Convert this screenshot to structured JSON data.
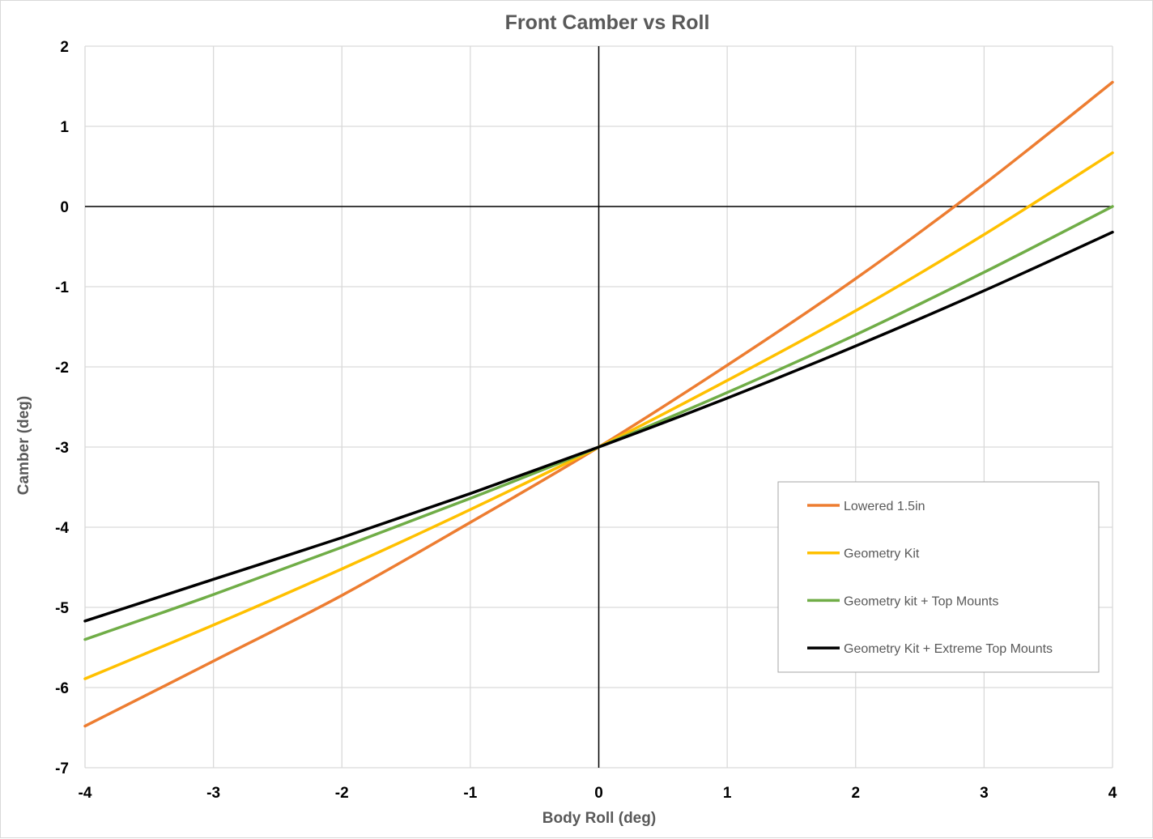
{
  "chart_data": {
    "type": "line",
    "title": "Front Camber vs Roll",
    "xlabel": "Body Roll (deg)",
    "ylabel": "Camber (deg)",
    "xlim": [
      -4,
      4
    ],
    "ylim": [
      -7,
      2
    ],
    "xticks": [
      "-4",
      "-3",
      "-2",
      "-1",
      "0",
      "1",
      "2",
      "3",
      "4"
    ],
    "yticks": [
      "2",
      "1",
      "0",
      "-1",
      "-2",
      "-3",
      "-4",
      "-5",
      "-6",
      "-7"
    ],
    "grid": true,
    "legend_position": "right",
    "series": [
      {
        "name": "Lowered 1.5in",
        "color": "#ED7D31",
        "x": [
          -4,
          -3,
          -2,
          -1,
          0,
          1,
          2,
          3,
          4
        ],
        "y": [
          -6.48,
          -5.67,
          -4.85,
          -3.94,
          -3.0,
          -1.98,
          -0.9,
          0.28,
          1.55
        ]
      },
      {
        "name": "Geometry Kit",
        "color": "#FFC000",
        "x": [
          -4,
          -3,
          -2,
          -1,
          0,
          1,
          2,
          3,
          4
        ],
        "y": [
          -5.89,
          -5.22,
          -4.52,
          -3.78,
          -3.0,
          -2.17,
          -1.3,
          -0.35,
          0.67
        ]
      },
      {
        "name": "Geometry kit + Top Mounts",
        "color": "#70AD47",
        "x": [
          -4,
          -3,
          -2,
          -1,
          0,
          1,
          2,
          3,
          4
        ],
        "y": [
          -5.4,
          -4.84,
          -4.25,
          -3.64,
          -3.0,
          -2.32,
          -1.6,
          -0.82,
          0.0
        ]
      },
      {
        "name": "Geometry Kit + Extreme Top Mounts",
        "color": "#000000",
        "x": [
          -4,
          -3,
          -2,
          -1,
          0,
          1,
          2,
          3,
          4
        ],
        "y": [
          -5.17,
          -4.65,
          -4.13,
          -3.58,
          -3.0,
          -2.39,
          -1.74,
          -1.05,
          -0.32
        ]
      }
    ]
  }
}
